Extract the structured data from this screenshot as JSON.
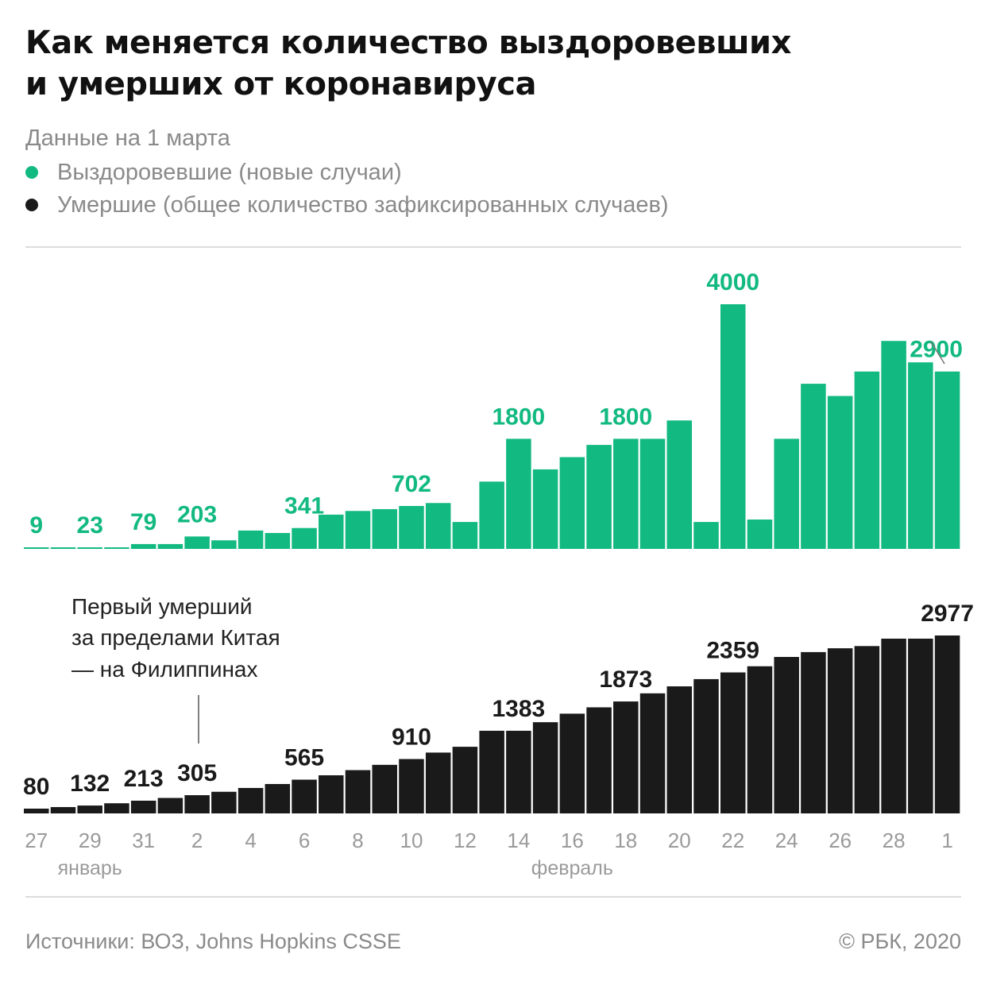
{
  "title_line1": "Как меняется количество выздоровевших",
  "title_line2": "и умерших от коронавируса",
  "subtitle": "Данные на 1 марта",
  "legend": [
    {
      "label": "Выздоровевшие (новые случаи)",
      "color": "#12b981"
    },
    {
      "label": "Умершие (общее количество зафиксированных случаев)",
      "color": "#1a1a1a"
    }
  ],
  "annotation": [
    "Первый умерший",
    "за пределами Китая",
    "— на Филиппинах"
  ],
  "footer": {
    "source": "Источники: ВОЗ, Johns Hopkins CSSE",
    "copyright": "© РБК, 2020"
  },
  "chart_data": [
    {
      "type": "bar",
      "name": "Выздоровевшие (новые случаи)",
      "color": "#12b981",
      "x": [
        "27 янв",
        "28 янв",
        "29 янв",
        "30 янв",
        "31 янв",
        "1 фев",
        "2 фев",
        "3 фев",
        "4 фев",
        "5 фев",
        "6 фев",
        "7 фев",
        "8 фев",
        "9 фев",
        "10 фев",
        "11 фев",
        "12 фев",
        "13 фев",
        "14 фев",
        "15 фев",
        "16 фев",
        "17 фев",
        "18 фев",
        "19 фев",
        "20 фев",
        "21 фев",
        "22 фев",
        "23 фев",
        "24 фев",
        "25 фев",
        "26 фев",
        "27 фев",
        "28 фев",
        "29 фев",
        "1 мар"
      ],
      "values": [
        9,
        9,
        23,
        23,
        79,
        79,
        203,
        140,
        300,
        260,
        341,
        560,
        620,
        650,
        702,
        750,
        440,
        1100,
        1800,
        1300,
        1500,
        1700,
        1800,
        1800,
        2100,
        440,
        4000,
        480,
        1800,
        2700,
        2500,
        2900,
        3400,
        3050,
        2900
      ],
      "labels": [
        {
          "index": 0,
          "text": "9"
        },
        {
          "index": 2,
          "text": "23"
        },
        {
          "index": 4,
          "text": "79"
        },
        {
          "index": 6,
          "text": "203"
        },
        {
          "index": 10,
          "text": "341"
        },
        {
          "index": 14,
          "text": "702"
        },
        {
          "index": 18,
          "text": "1800"
        },
        {
          "index": 22,
          "text": "1800"
        },
        {
          "index": 26,
          "text": "4000"
        },
        {
          "index": 34,
          "text": "2900"
        }
      ]
    },
    {
      "type": "bar",
      "name": "Умершие (общее количество зафиксированных случаев)",
      "color": "#1a1a1a",
      "x": [
        "27 янв",
        "28 янв",
        "29 янв",
        "30 янв",
        "31 янв",
        "1 фев",
        "2 фев",
        "3 фев",
        "4 фев",
        "5 фев",
        "6 фев",
        "7 фев",
        "8 фев",
        "9 фев",
        "10 фев",
        "11 фев",
        "12 фев",
        "13 фев",
        "14 фев",
        "15 фев",
        "16 фев",
        "17 фев",
        "18 фев",
        "19 фев",
        "20 фев",
        "21 фев",
        "22 фев",
        "23 фев",
        "24 фев",
        "25 фев",
        "26 фев",
        "27 фев",
        "28 фев",
        "29 фев",
        "1 мар"
      ],
      "values": [
        80,
        106,
        132,
        170,
        213,
        259,
        305,
        362,
        426,
        492,
        565,
        638,
        724,
        813,
        910,
        1018,
        1115,
        1383,
        1383,
        1526,
        1669,
        1775,
        1873,
        2009,
        2126,
        2247,
        2359,
        2462,
        2618,
        2699,
        2763,
        2800,
        2924,
        2924,
        2977
      ],
      "labels": [
        {
          "index": 0,
          "text": "80"
        },
        {
          "index": 2,
          "text": "132"
        },
        {
          "index": 4,
          "text": "213"
        },
        {
          "index": 6,
          "text": "305"
        },
        {
          "index": 10,
          "text": "565"
        },
        {
          "index": 14,
          "text": "910"
        },
        {
          "index": 18,
          "text": "1383"
        },
        {
          "index": 22,
          "text": "1873"
        },
        {
          "index": 26,
          "text": "2359"
        },
        {
          "index": 34,
          "text": "2977"
        }
      ]
    }
  ],
  "x_ticks": [
    {
      "index": 0,
      "label": "27"
    },
    {
      "index": 2,
      "label": "29"
    },
    {
      "index": 4,
      "label": "31"
    },
    {
      "index": 6,
      "label": "2"
    },
    {
      "index": 8,
      "label": "4"
    },
    {
      "index": 10,
      "label": "6"
    },
    {
      "index": 12,
      "label": "8"
    },
    {
      "index": 14,
      "label": "10"
    },
    {
      "index": 16,
      "label": "12"
    },
    {
      "index": 18,
      "label": "14"
    },
    {
      "index": 20,
      "label": "16"
    },
    {
      "index": 22,
      "label": "18"
    },
    {
      "index": 24,
      "label": "20"
    },
    {
      "index": 26,
      "label": "22"
    },
    {
      "index": 28,
      "label": "24"
    },
    {
      "index": 30,
      "label": "26"
    },
    {
      "index": 32,
      "label": "28"
    },
    {
      "index": 34,
      "label": "1"
    }
  ],
  "months": [
    {
      "index": 2,
      "label": "январь"
    },
    {
      "index": 20,
      "label": "февраль"
    }
  ]
}
